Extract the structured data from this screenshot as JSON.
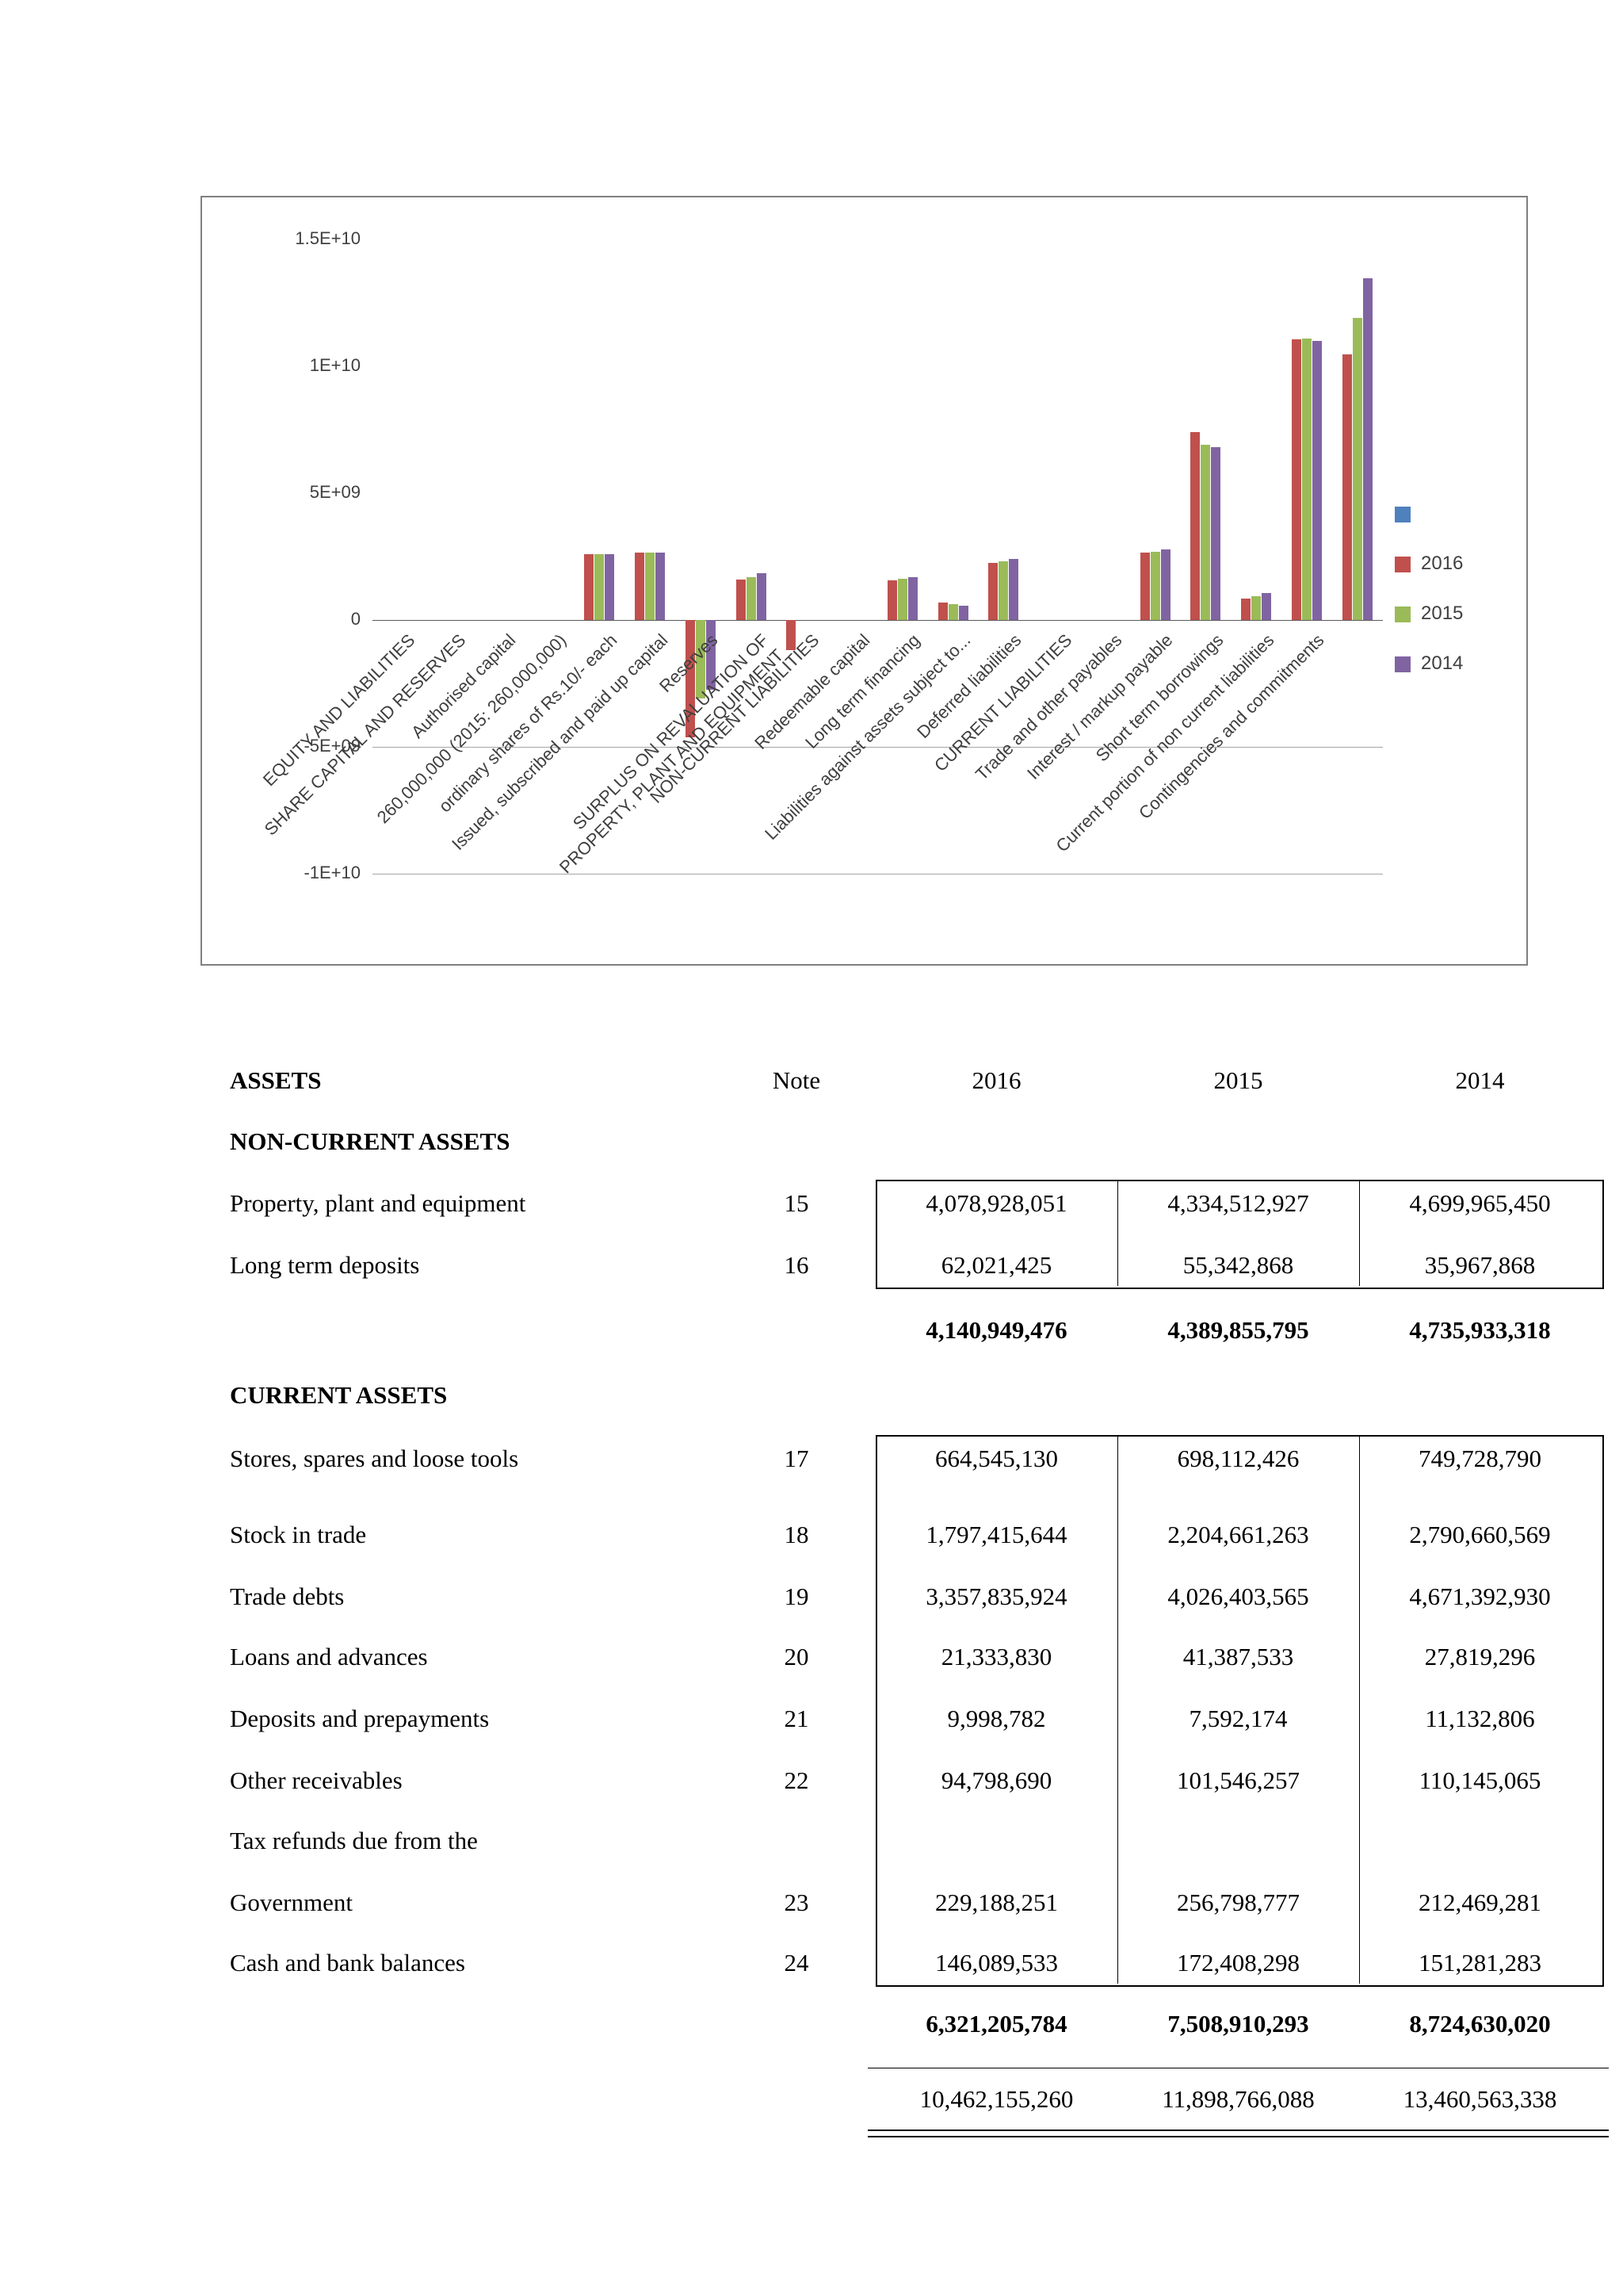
{
  "chart": {
    "border_color": "#808080",
    "legend": [
      {
        "label": "",
        "color": "#4F81BD"
      },
      {
        "label": "2016",
        "color": "#C0504D"
      },
      {
        "label": "2015",
        "color": "#9BBB59"
      },
      {
        "label": "2014",
        "color": "#8064A2"
      }
    ],
    "y_ticks": [
      {
        "label": "1.5E+10",
        "value": 15000000000
      },
      {
        "label": "1E+10",
        "value": 10000000000
      },
      {
        "label": "5E+09",
        "value": 5000000000
      },
      {
        "label": "0",
        "value": 0
      },
      {
        "label": "-5E+09",
        "value": -5000000000
      },
      {
        "label": "-1E+10",
        "value": -10000000000
      }
    ]
  },
  "chart_data": {
    "type": "bar",
    "title": "",
    "xlabel": "",
    "ylabel": "",
    "ylim": [
      -10000000000,
      15000000000
    ],
    "legend_position": "right",
    "gridlines": "horizontal-below-zero-only",
    "categories": [
      "EQUITY AND LIABILITIES",
      "SHARE CAPITAL AND RESERVES",
      "Authorised capital",
      "260,000,000 (2015: 260,000,000)",
      "ordinary shares of Rs.10/- each",
      "Issued, subscribed and paid up capital",
      "Reserves",
      "SURPLUS ON REVALUATION OF\nPROPERTY, PLANT AND EQUIPMENT",
      "NON-CURRENT LIABILITIES",
      "Redeemable capital",
      "Long term financing",
      "Liabilities against assets subject to...",
      "Deferred liabilities",
      "CURRENT LIABILITIES",
      "Trade and other payables",
      "Interest / markup payable",
      "Short term borrowings",
      "Current portion of non current liabilities",
      "Contingencies and commitments",
      ""
    ],
    "series": [
      {
        "name": "2016",
        "color": "#C0504D",
        "values": [
          0,
          0,
          0,
          0,
          2600000000,
          2662000000,
          -4640000000,
          1600000000,
          -1200000000,
          0,
          1550000000,
          700000000,
          2250000000,
          0,
          0,
          2650000000,
          7400000000,
          850000000,
          11050000000,
          10462155260
        ]
      },
      {
        "name": "2015",
        "color": "#9BBB59",
        "values": [
          0,
          0,
          0,
          0,
          2600000000,
          2662000000,
          -3100000000,
          1700000000,
          0,
          0,
          1620000000,
          620000000,
          2320000000,
          0,
          0,
          2700000000,
          6900000000,
          950000000,
          11100000000,
          11898766088
        ]
      },
      {
        "name": "2014",
        "color": "#8064A2",
        "values": [
          0,
          0,
          0,
          0,
          2600000000,
          2662000000,
          -2750000000,
          1850000000,
          0,
          0,
          1700000000,
          550000000,
          2400000000,
          0,
          0,
          2780000000,
          6800000000,
          1050000000,
          11000000000,
          13460563338
        ]
      }
    ]
  },
  "assets_table": {
    "title": "ASSETS",
    "col_headers": {
      "note": "Note",
      "y2016": "2016",
      "y2015": "2015",
      "y2014": "2014"
    },
    "sections": [
      {
        "heading": "NON-CURRENT ASSETS",
        "rows": [
          {
            "label": "Property, plant and equipment",
            "note": "15",
            "v2016": "4,078,928,051",
            "v2015": "4,334,512,927",
            "v2014": "4,699,965,450"
          },
          {
            "label": "Long term deposits",
            "note": "16",
            "v2016": "62,021,425",
            "v2015": "55,342,868",
            "v2014": "35,967,868"
          }
        ],
        "subtotal": {
          "v2016": "4,140,949,476",
          "v2015": "4,389,855,795",
          "v2014": "4,735,933,318"
        }
      },
      {
        "heading": "CURRENT ASSETS",
        "rows": [
          {
            "label": "Stores, spares and loose tools",
            "note": "17",
            "v2016": "664,545,130",
            "v2015": "698,112,426",
            "v2014": "749,728,790"
          },
          {
            "label": "Stock in trade",
            "note": "18",
            "v2016": "1,797,415,644",
            "v2015": "2,204,661,263",
            "v2014": "2,790,660,569"
          },
          {
            "label": "Trade debts",
            "note": "19",
            "v2016": "3,357,835,924",
            "v2015": "4,026,403,565",
            "v2014": "4,671,392,930"
          },
          {
            "label": "Loans and advances",
            "note": "20",
            "v2016": "21,333,830",
            "v2015": "41,387,533",
            "v2014": "27,819,296"
          },
          {
            "label": "Deposits and prepayments",
            "note": "21",
            "v2016": "9,998,782",
            "v2015": "7,592,174",
            "v2014": "11,132,806"
          },
          {
            "label": "Other receivables",
            "note": "22",
            "v2016": "94,798,690",
            "v2015": "101,546,257",
            "v2014": "110,145,065"
          },
          {
            "label": "Tax refunds due from the",
            "note": "",
            "v2016": "",
            "v2015": "",
            "v2014": ""
          },
          {
            "label": "Government",
            "note": "23",
            "v2016": "229,188,251",
            "v2015": "256,798,777",
            "v2014": "212,469,281"
          },
          {
            "label": "Cash and bank balances",
            "note": "24",
            "v2016": "146,089,533",
            "v2015": "172,408,298",
            "v2014": "151,281,283"
          }
        ],
        "subtotal": {
          "v2016": "6,321,205,784",
          "v2015": "7,508,910,293",
          "v2014": "8,724,630,020"
        }
      }
    ],
    "total": {
      "v2016": "10,462,155,260",
      "v2015": "11,898,766,088",
      "v2014": "13,460,563,338"
    }
  }
}
